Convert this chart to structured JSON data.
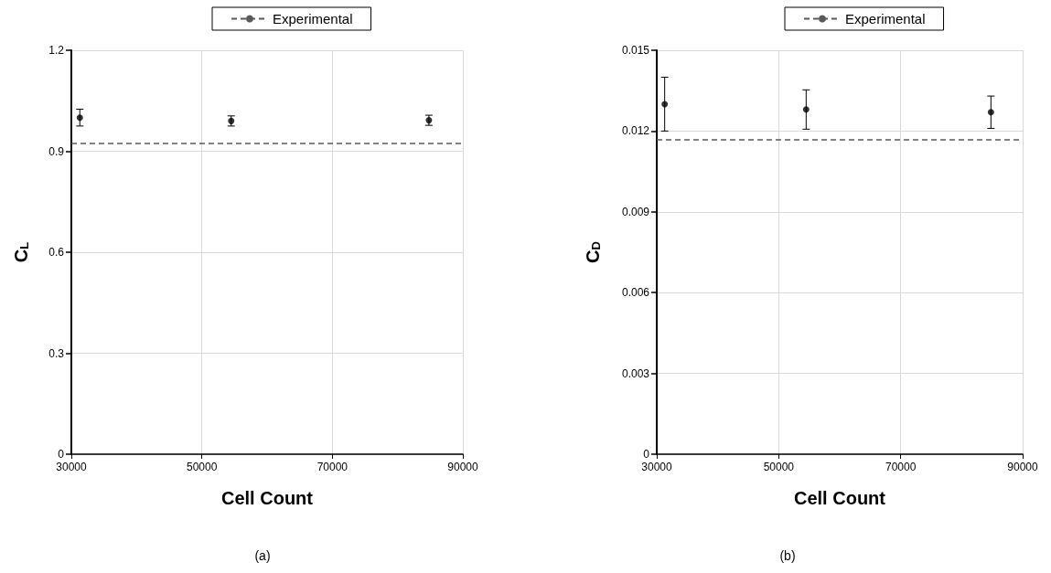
{
  "chart_data": [
    {
      "type": "scatter",
      "xlabel": "Cell Count",
      "ylabel": "C$_{L}$",
      "annotations": [
        "(a)"
      ],
      "x": [
        31300,
        54500,
        84800
      ],
      "xlim": [
        30000,
        90000
      ],
      "xticks": [
        30000,
        50000,
        70000,
        90000
      ],
      "ylim": [
        0,
        1.2
      ],
      "yticks": [
        0,
        0.3,
        0.6,
        0.9,
        1.2
      ],
      "grid": true,
      "legend": "top",
      "series": [
        {
          "color": "#000000",
          "marker": "circle",
          "values": [
            1.0,
            0.99,
            0.992
          ],
          "errors": [
            0.025,
            0.015,
            0.015
          ]
        }
      ],
      "ref_lines": [
        {
          "axis": "y",
          "value": 0.923,
          "label": "Experimental",
          "color": "#595959",
          "line_style": "dashed"
        }
      ]
    },
    {
      "type": "scatter",
      "xlabel": "Cell Count",
      "ylabel": "C$_{D}$",
      "annotations": [
        "(b)"
      ],
      "x": [
        31300,
        54500,
        84800
      ],
      "xlim": [
        30000,
        90000
      ],
      "xticks": [
        30000,
        50000,
        70000,
        90000
      ],
      "ylim": [
        0,
        0.015
      ],
      "yticks": [
        0,
        0.003,
        0.006,
        0.009,
        0.012,
        0.015
      ],
      "grid": true,
      "legend": "top",
      "series": [
        {
          "color": "#000000",
          "marker": "circle",
          "values": [
            0.013,
            0.0128,
            0.0127
          ],
          "errors": [
            0.001,
            0.00073,
            0.0006
          ]
        }
      ],
      "ref_lines": [
        {
          "axis": "y",
          "value": 0.01167,
          "label": "Experimental",
          "color": "#595959",
          "line_style": "dashed"
        }
      ]
    }
  ]
}
